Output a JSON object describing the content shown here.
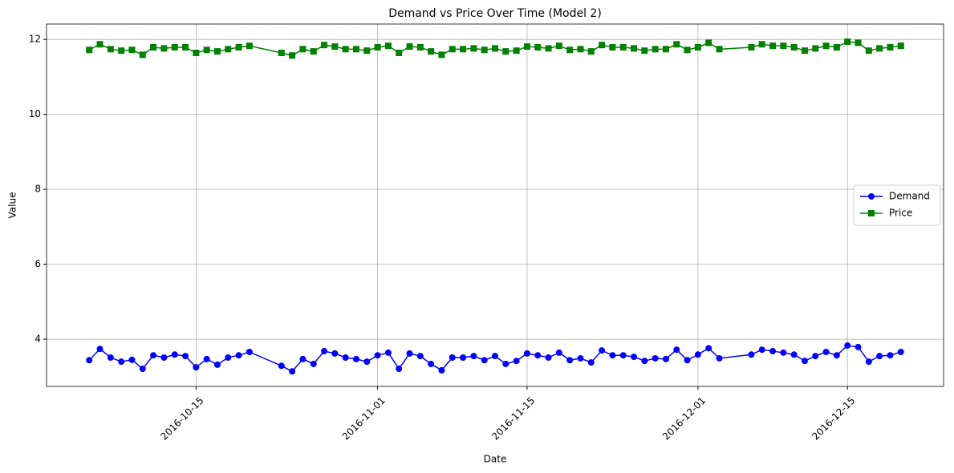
{
  "chart_data": {
    "type": "line",
    "title": "Demand vs Price Over Time (Model 2)",
    "x_label": "Date",
    "y_label": "Value",
    "x": [
      "2016-10-05",
      "2016-10-06",
      "2016-10-07",
      "2016-10-08",
      "2016-10-09",
      "2016-10-10",
      "2016-10-11",
      "2016-10-12",
      "2016-10-13",
      "2016-10-14",
      "2016-10-15",
      "2016-10-16",
      "2016-10-17",
      "2016-10-18",
      "2016-10-19",
      "2016-10-20",
      "2016-10-23",
      "2016-10-24",
      "2016-10-25",
      "2016-10-26",
      "2016-10-27",
      "2016-10-28",
      "2016-10-29",
      "2016-10-30",
      "2016-10-31",
      "2016-11-01",
      "2016-11-02",
      "2016-11-03",
      "2016-11-04",
      "2016-11-05",
      "2016-11-06",
      "2016-11-07",
      "2016-11-08",
      "2016-11-09",
      "2016-11-10",
      "2016-11-11",
      "2016-11-12",
      "2016-11-13",
      "2016-11-14",
      "2016-11-15",
      "2016-11-16",
      "2016-11-17",
      "2016-11-18",
      "2016-11-19",
      "2016-11-20",
      "2016-11-21",
      "2016-11-22",
      "2016-11-23",
      "2016-11-24",
      "2016-11-25",
      "2016-11-26",
      "2016-11-27",
      "2016-11-28",
      "2016-11-29",
      "2016-11-30",
      "2016-12-01",
      "2016-12-02",
      "2016-12-03",
      "2016-12-06",
      "2016-12-07",
      "2016-12-08",
      "2016-12-09",
      "2016-12-10",
      "2016-12-11",
      "2016-12-12",
      "2016-12-13",
      "2016-12-14",
      "2016-12-15",
      "2016-12-16",
      "2016-12-17",
      "2016-12-18",
      "2016-12-19",
      "2016-12-20"
    ],
    "series": [
      {
        "name": "Demand",
        "color": "#0000ff",
        "marker": "circle",
        "values": [
          3.44,
          3.74,
          3.51,
          3.4,
          3.45,
          3.21,
          3.57,
          3.51,
          3.59,
          3.55,
          3.25,
          3.47,
          3.32,
          3.51,
          3.57,
          3.66,
          3.29,
          3.14,
          3.47,
          3.34,
          3.68,
          3.62,
          3.51,
          3.47,
          3.4,
          3.57,
          3.64,
          3.21,
          3.62,
          3.55,
          3.34,
          3.17,
          3.51,
          3.51,
          3.55,
          3.44,
          3.55,
          3.34,
          3.42,
          3.62,
          3.57,
          3.51,
          3.64,
          3.44,
          3.49,
          3.38,
          3.7,
          3.57,
          3.57,
          3.53,
          3.42,
          3.49,
          3.47,
          3.72,
          3.44,
          3.59,
          3.76,
          3.49,
          3.59,
          3.72,
          3.68,
          3.64,
          3.59,
          3.42,
          3.55,
          3.66,
          3.57,
          3.83,
          3.79,
          3.4,
          3.55,
          3.57,
          3.66
        ]
      },
      {
        "name": "Price",
        "color": "#008000",
        "marker": "square",
        "values": [
          11.72,
          11.87,
          11.74,
          11.7,
          11.72,
          11.59,
          11.79,
          11.76,
          11.79,
          11.79,
          11.64,
          11.72,
          11.68,
          11.74,
          11.79,
          11.83,
          11.64,
          11.57,
          11.74,
          11.68,
          11.85,
          11.81,
          11.74,
          11.74,
          11.7,
          11.79,
          11.83,
          11.64,
          11.81,
          11.79,
          11.68,
          11.59,
          11.74,
          11.74,
          11.76,
          11.72,
          11.76,
          11.68,
          11.7,
          11.81,
          11.79,
          11.76,
          11.83,
          11.72,
          11.74,
          11.68,
          11.85,
          11.79,
          11.79,
          11.76,
          11.7,
          11.74,
          11.74,
          11.87,
          11.72,
          11.79,
          11.91,
          11.74,
          11.79,
          11.87,
          11.83,
          11.83,
          11.79,
          11.7,
          11.76,
          11.83,
          11.79,
          11.94,
          11.91,
          11.7,
          11.76,
          11.79,
          11.83
        ]
      }
    ],
    "xlim": [
      "2016-10-01",
      "2016-12-24"
    ],
    "xticks": [
      "2016-10-15",
      "2016-11-01",
      "2016-11-15",
      "2016-12-01",
      "2016-12-15"
    ],
    "ylim": [
      2.74,
      12.41
    ],
    "yticks": [
      4,
      6,
      8,
      10,
      12
    ],
    "grid": true,
    "legend": "center right"
  }
}
